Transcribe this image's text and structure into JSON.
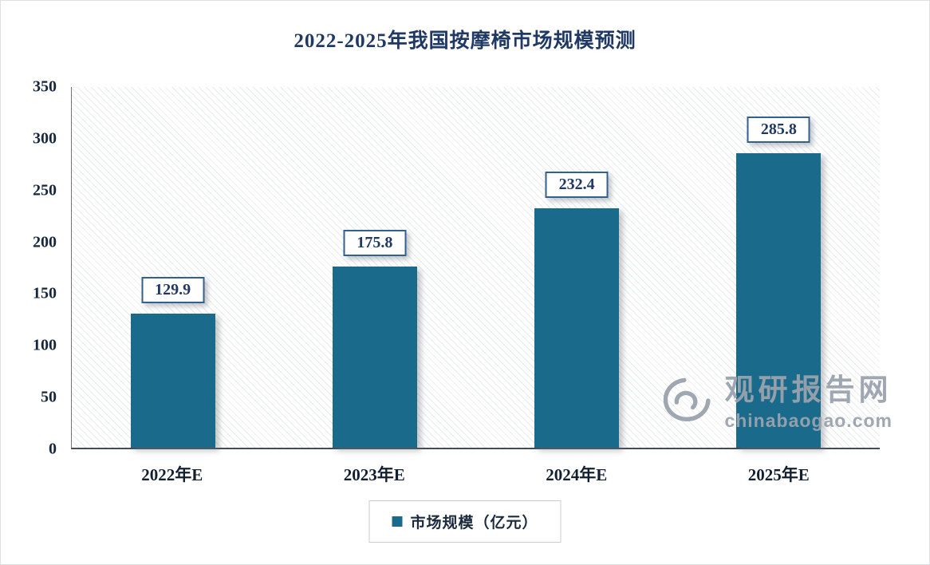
{
  "title": "2022-2025年我国按摩椅市场规模预测",
  "chart_data": {
    "type": "bar",
    "title": "2022-2025年我国按摩椅市场规模预测",
    "categories": [
      "2022年E",
      "2023年E",
      "2024年E",
      "2025年E"
    ],
    "values": [
      129.9,
      175.8,
      232.4,
      285.8
    ],
    "series_name": "市场规模（亿元）",
    "xlabel": "",
    "ylabel": "",
    "ylim": [
      0,
      350
    ],
    "yticks": [
      0,
      50,
      100,
      150,
      200,
      250,
      300,
      350
    ],
    "grid": false,
    "legend_position": "bottom",
    "bar_color": "#1A6B8B",
    "label_box_border_color": "#31618F",
    "title_color": "#1F3864",
    "background_hatch": "diagonal-lines"
  },
  "legend": {
    "label": "市场规模（亿元）"
  },
  "watermark": {
    "name_cn": "观研报告网",
    "domain": "chinabaogao.com",
    "color": "#9aa3ae"
  }
}
